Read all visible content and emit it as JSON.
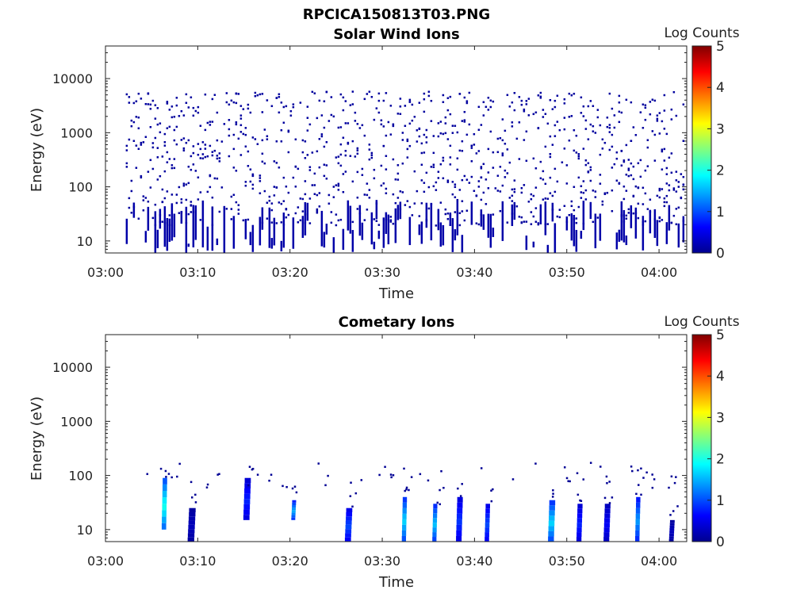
{
  "figure_title": "RPCICA150813T03.PNG",
  "colorbar_label": "Log Counts",
  "colorbar_ticks": [
    "0",
    "1",
    "2",
    "3",
    "4",
    "5"
  ],
  "chart_data": [
    {
      "type": "heatmap",
      "title": "Solar Wind Ions",
      "xlabel": "Time",
      "ylabel": "Energy (eV)",
      "xticks": [
        "03:00",
        "03:10",
        "03:20",
        "03:30",
        "03:40",
        "03:50",
        "04:00"
      ],
      "yticks": [
        "10",
        "100",
        "1000",
        "10000"
      ],
      "y_scale": "log",
      "ylim": [
        6,
        40000
      ],
      "xlim": [
        "03:00",
        "04:03"
      ],
      "clim": [
        0,
        5
      ],
      "colormap": "jet",
      "description_of_pattern": "sparse single counts (log counts ~0) scattered 03:02-04:03 at 20-6000 eV, denser streaks below 60 eV"
    },
    {
      "type": "heatmap",
      "title": "Cometary Ions",
      "xlabel": "Time",
      "ylabel": "Energy (eV)",
      "xticks": [
        "03:00",
        "03:10",
        "03:20",
        "03:30",
        "03:40",
        "03:50",
        "04:00"
      ],
      "yticks": [
        "10",
        "100",
        "1000",
        "10000"
      ],
      "y_scale": "log",
      "ylim": [
        6,
        40000
      ],
      "xlim": [
        "03:00",
        "04:03"
      ],
      "clim": [
        0,
        5
      ],
      "colormap": "jet",
      "bursts": [
        {
          "time_min": 6.5,
          "e_low": 10,
          "e_high": 90,
          "peak_log_counts": 2.0
        },
        {
          "time_min": 9.5,
          "e_low": 6,
          "e_high": 25,
          "peak_log_counts": 0.3
        },
        {
          "time_min": 15.5,
          "e_low": 15,
          "e_high": 90,
          "peak_log_counts": 0.8
        },
        {
          "time_min": 20.5,
          "e_low": 15,
          "e_high": 35,
          "peak_log_counts": 1.5
        },
        {
          "time_min": 26.5,
          "e_low": 6,
          "e_high": 25,
          "peak_log_counts": 1.0
        },
        {
          "time_min": 32.5,
          "e_low": 6,
          "e_high": 40,
          "peak_log_counts": 1.7
        },
        {
          "time_min": 35.8,
          "e_low": 6,
          "e_high": 30,
          "peak_log_counts": 1.6
        },
        {
          "time_min": 38.5,
          "e_low": 6,
          "e_high": 40,
          "peak_log_counts": 0.9
        },
        {
          "time_min": 41.5,
          "e_low": 6,
          "e_high": 30,
          "peak_log_counts": 1.0
        },
        {
          "time_min": 48.5,
          "e_low": 6,
          "e_high": 35,
          "peak_log_counts": 1.7
        },
        {
          "time_min": 51.5,
          "e_low": 6,
          "e_high": 30,
          "peak_log_counts": 0.8
        },
        {
          "time_min": 54.5,
          "e_low": 6,
          "e_high": 30,
          "peak_log_counts": 0.6
        },
        {
          "time_min": 57.8,
          "e_low": 6,
          "e_high": 40,
          "peak_log_counts": 1.4
        },
        {
          "time_min": 61.5,
          "e_low": 6,
          "e_high": 15,
          "peak_log_counts": 0.3
        }
      ]
    }
  ]
}
